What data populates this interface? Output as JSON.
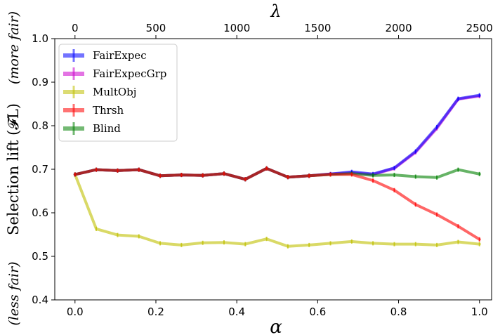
{
  "chart_data": {
    "type": "line",
    "xlabel": "α",
    "x2label": "λ",
    "ylabel": "Selection lift (𝓕L)",
    "ylabel_bottom": "(less fair)",
    "ylabel_top": "(more fair)",
    "xlim": [
      -0.05,
      1.03
    ],
    "ylim": [
      0.4,
      1.0
    ],
    "x_ticks": [
      "0.0",
      "0.2",
      "0.4",
      "0.6",
      "0.8",
      "1.0"
    ],
    "x_tick_values": [
      0.0,
      0.2,
      0.4,
      0.6,
      0.8,
      1.0
    ],
    "y_ticks": [
      "0.4",
      "0.5",
      "0.6",
      "0.7",
      "0.8",
      "0.9",
      "1.0"
    ],
    "y_tick_values": [
      0.4,
      0.5,
      0.6,
      0.7,
      0.8,
      0.9,
      1.0
    ],
    "x2_ticks": [
      "0",
      "500",
      "1000",
      "1500",
      "2000",
      "2500"
    ],
    "x2_tick_values": [
      0,
      500,
      1000,
      1500,
      2000,
      2500
    ],
    "x2_max": 2500,
    "grid": false,
    "legend_position": "upper-left",
    "x": [
      0.0,
      0.0526,
      0.1053,
      0.1579,
      0.2105,
      0.2632,
      0.3158,
      0.3684,
      0.4211,
      0.4737,
      0.5263,
      0.5789,
      0.6316,
      0.6842,
      0.7368,
      0.7895,
      0.8421,
      0.8947,
      0.9474,
      1.0
    ],
    "series": [
      {
        "name": "FairExpec",
        "color": "#0000ff",
        "values": [
          0.688,
          0.699,
          0.697,
          0.699,
          0.685,
          0.687,
          0.686,
          0.69,
          0.677,
          0.702,
          0.682,
          0.685,
          0.689,
          0.694,
          0.689,
          0.703,
          0.741,
          0.797,
          0.862,
          0.87
        ]
      },
      {
        "name": "FairExpecGrp",
        "color": "#cc00cc",
        "values": [
          0.688,
          0.699,
          0.697,
          0.699,
          0.685,
          0.687,
          0.686,
          0.69,
          0.677,
          0.702,
          0.682,
          0.685,
          0.689,
          0.692,
          0.688,
          0.702,
          0.739,
          0.794,
          0.861,
          0.868
        ]
      },
      {
        "name": "MultObj",
        "color": "#bfbf00",
        "values": [
          0.688,
          0.563,
          0.549,
          0.546,
          0.53,
          0.526,
          0.531,
          0.532,
          0.528,
          0.54,
          0.523,
          0.526,
          0.53,
          0.534,
          0.53,
          0.528,
          0.528,
          0.526,
          0.533,
          0.528
        ]
      },
      {
        "name": "Thrsh",
        "color": "#ff0000",
        "values": [
          0.688,
          0.699,
          0.697,
          0.699,
          0.685,
          0.687,
          0.686,
          0.69,
          0.677,
          0.702,
          0.682,
          0.685,
          0.688,
          0.688,
          0.674,
          0.652,
          0.619,
          0.596,
          0.569,
          0.539
        ]
      },
      {
        "name": "Blind",
        "color": "#008000",
        "values": [
          0.688,
          0.699,
          0.697,
          0.699,
          0.685,
          0.687,
          0.686,
          0.69,
          0.677,
          0.702,
          0.682,
          0.685,
          0.688,
          0.69,
          0.686,
          0.687,
          0.683,
          0.681,
          0.699,
          0.689
        ]
      }
    ]
  }
}
